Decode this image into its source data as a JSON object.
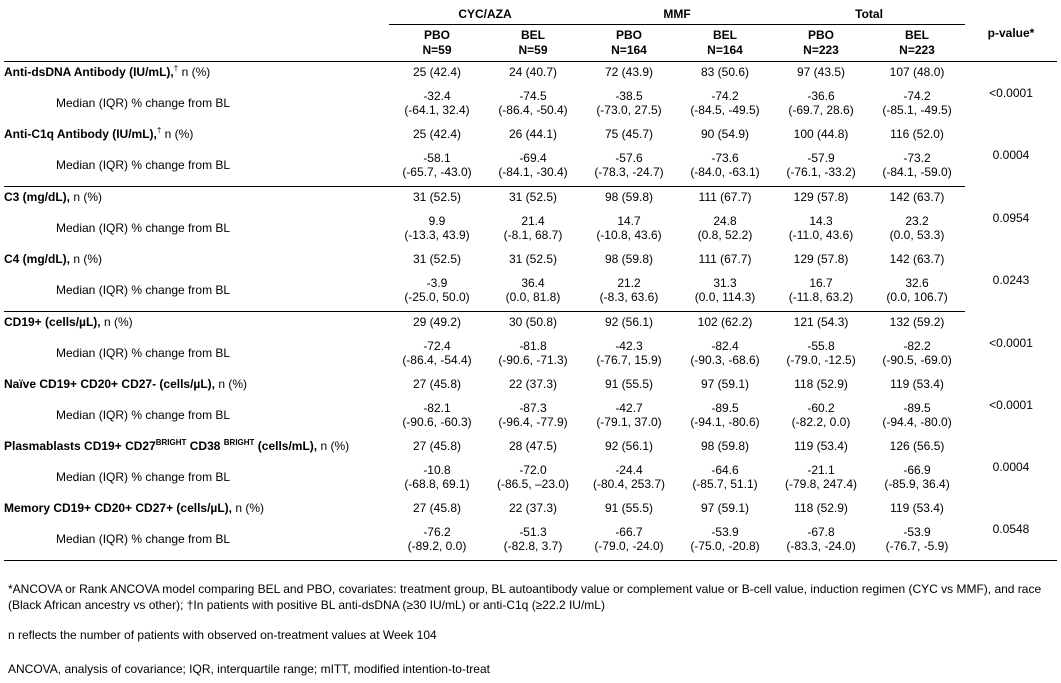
{
  "header": {
    "groups": [
      "CYC/AZA",
      "MMF",
      "Total"
    ],
    "arms": [
      {
        "arm": "PBO",
        "n": "N=59"
      },
      {
        "arm": "BEL",
        "n": "N=59"
      },
      {
        "arm": "PBO",
        "n": "N=164"
      },
      {
        "arm": "BEL",
        "n": "N=164"
      },
      {
        "arm": "PBO",
        "n": "N=223"
      },
      {
        "arm": "BEL",
        "n": "N=223"
      }
    ],
    "pvalue": "p-value*"
  },
  "median_label": "Median (IQR) % change from BL",
  "n_pct": "n (%)",
  "rows": [
    {
      "title": "Anti-dsDNA Antibody (IU/mL),",
      "sup": "†",
      "n": [
        "25 (42.4)",
        "24 (40.7)",
        "72 (43.9)",
        "83 (50.6)",
        "97 (43.5)",
        "107 (48.0)"
      ],
      "median": [
        "-32.4",
        "-74.5",
        "-38.5",
        "-74.2",
        "-36.6",
        "-74.2"
      ],
      "iqr": [
        "(-64.1, 32.4)",
        "(-86.4, -50.4)",
        "(-73.0, 27.5)",
        "(-84.5, -49.5)",
        "(-69.7, 28.6)",
        "(-85.1, -49.5)"
      ],
      "p": "<0.0001"
    },
    {
      "title": "Anti-C1q Antibody (IU/mL),",
      "sup": "†",
      "n": [
        "25 (42.4)",
        "26 (44.1)",
        "75 (45.7)",
        "90 (54.9)",
        "100 (44.8)",
        "116 (52.0)"
      ],
      "median": [
        "-58.1",
        "-69.4",
        "-57.6",
        "-73.6",
        "-57.9",
        "-73.2"
      ],
      "iqr": [
        "(-65.7, -43.0)",
        "(-84.1, -30.4)",
        "(-78.3, -24.7)",
        "(-84.0, -63.1)",
        "(-76.1, -33.2)",
        "(-84.1, -59.0)"
      ],
      "p": "0.0004"
    },
    {
      "title": "C3 (mg/dL),",
      "n": [
        "31 (52.5)",
        "31 (52.5)",
        "98 (59.8)",
        "111 (67.7)",
        "129 (57.8)",
        "142 (63.7)"
      ],
      "median": [
        "9.9",
        "21.4",
        "14.7",
        "24.8",
        "14.3",
        "23.2"
      ],
      "iqr": [
        "(-13.3, 43.9)",
        "(-8.1, 68.7)",
        "(-10.8, 43.6)",
        "(0.8, 52.2)",
        "(-11.0, 43.6)",
        "(0.0, 53.3)"
      ],
      "p": "0.0954"
    },
    {
      "title": "C4 (mg/dL),",
      "n": [
        "31 (52.5)",
        "31 (52.5)",
        "98 (59.8)",
        "111 (67.7)",
        "129 (57.8)",
        "142 (63.7)"
      ],
      "median": [
        "-3.9",
        "36.4",
        "21.2",
        "31.3",
        "16.7",
        "32.6"
      ],
      "iqr": [
        "(-25.0, 50.0)",
        "(0.0, 81.8)",
        "(-8.3, 63.6)",
        "(0.0, 114.3)",
        "(-11.8, 63.2)",
        "(0.0, 106.7)"
      ],
      "p": "0.0243"
    },
    {
      "title": "CD19+ (cells/µL),",
      "n": [
        "29 (49.2)",
        "30 (50.8)",
        "92 (56.1)",
        "102 (62.2)",
        "121 (54.3)",
        "132 (59.2)"
      ],
      "median": [
        "-72.4",
        "-81.8",
        "-42.3",
        "-82.4",
        "-55.8",
        "-82.2"
      ],
      "iqr": [
        "(-86.4, -54.4)",
        "(-90.6, -71.3)",
        "(-76.7, 15.9)",
        "(-90.3, -68.6)",
        "(-79.0, -12.5)",
        "(-90.5, -69.0)"
      ],
      "p": "<0.0001"
    },
    {
      "title": "Naïve CD19+ CD20+ CD27- (cells/µL),",
      "n": [
        "27 (45.8)",
        "22 (37.3)",
        "91 (55.5)",
        "97 (59.1)",
        "118 (52.9)",
        "119 (53.4)"
      ],
      "median": [
        "-82.1",
        "-87.3",
        "-42.7",
        "-89.5",
        "-60.2",
        "-89.5"
      ],
      "iqr": [
        "(-90.6, -60.3)",
        "(-96.4, -77.9)",
        "(-79.1, 37.0)",
        "(-94.1, -80.6)",
        "(-82.2, 0.0)",
        "(-94.4, -80.0)"
      ],
      "p": "<0.0001"
    },
    {
      "title_a": "Plasmablasts CD19+ CD27",
      "title_sup1": "BRIGHT",
      "title_b": " CD38 ",
      "title_sup2": "BRIGHT",
      "title_c": " (cells/mL),",
      "n": [
        "27 (45.8)",
        "28 (47.5)",
        "92 (56.1)",
        "98 (59.8)",
        "119 (53.4)",
        "126 (56.5)"
      ],
      "median": [
        "-10.8",
        "-72.0",
        "-24.4",
        "-64.6",
        "-21.1",
        "-66.9"
      ],
      "iqr": [
        "(-68.8, 69.1)",
        "(-86.5, –23.0)",
        "(-80.4, 253.7)",
        "(-85.7, 51.1)",
        "(-79.8, 247.4)",
        "(-85.9, 36.4)"
      ],
      "p": "0.0004"
    },
    {
      "title": "Memory CD19+ CD20+ CD27+ (cells/µL),",
      "n": [
        "27 (45.8)",
        "22 (37.3)",
        "91 (55.5)",
        "97 (59.1)",
        "118 (52.9)",
        "119 (53.4)"
      ],
      "median": [
        "-76.2",
        "-51.3",
        "-66.7",
        "-53.9",
        "-67.8",
        "-53.9"
      ],
      "iqr": [
        "(-89.2, 0.0)",
        "(-82.8, 3.7)",
        "(-79.0, -24.0)",
        "(-75.0, -20.8)",
        "(-83.3, -24.0)",
        "(-76.7, -5.9)"
      ],
      "p": "0.0548"
    }
  ],
  "footnotes": {
    "note1": "*ANCOVA or Rank ANCOVA model comparing BEL and PBO, covariates: treatment group, BL autoantibody value or complement value or B-cell value, induction regimen (CYC vs MMF), and race (Black African ancestry vs other); †In patients with positive BL anti-dsDNA (≥30 IU/mL) or anti-C1q (≥22.2 IU/mL)",
    "note2": "n reflects the number of patients with observed on-treatment values at Week 104",
    "note3": "ANCOVA, analysis of covariance; IQR, interquartile range; mITT, modified intention-to-treat"
  }
}
